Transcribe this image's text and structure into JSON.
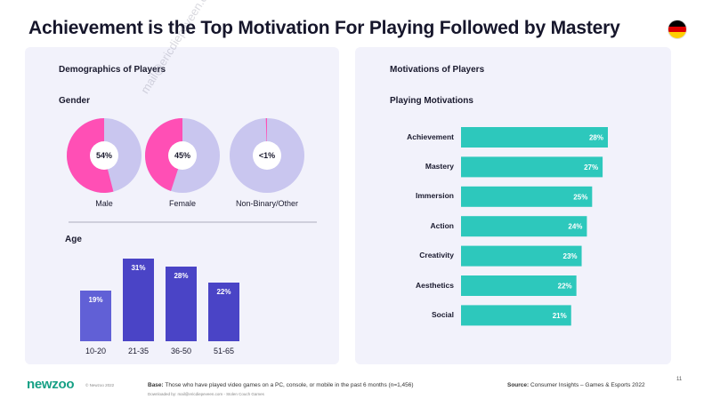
{
  "title": "Achievement is the Top Motivation For Playing Followed by Mastery",
  "flag": {
    "name": "germany-flag-icon",
    "colors": [
      "#000000",
      "#dd0000",
      "#ffce00"
    ]
  },
  "left_panel": {
    "heading": "Demographics of Players",
    "gender_heading": "Gender",
    "age_heading": "Age"
  },
  "right_panel": {
    "heading": "Motivations of Players",
    "subheading": "Playing Motivations"
  },
  "colors": {
    "donut_track": "#c9c6ef",
    "donut_fill": "#ff4fb5",
    "age_bar": "#4a44c6",
    "age_bar_first": "#6160d6",
    "motivation_bar": "#2dc8bc",
    "panel_bg": "#f2f2fb"
  },
  "chart_data": [
    {
      "type": "pie",
      "title": "Gender",
      "slices": [
        {
          "label": "Male",
          "value": 54,
          "display": "54%"
        },
        {
          "label": "Female",
          "value": 45,
          "display": "45%"
        },
        {
          "label": "Non-Binary/Other",
          "value": 0.5,
          "display": "<1%"
        }
      ]
    },
    {
      "type": "bar",
      "title": "Age",
      "categories": [
        "10-20",
        "21-35",
        "36-50",
        "51-65"
      ],
      "values": [
        19,
        31,
        28,
        22
      ],
      "labels": [
        "19%",
        "31%",
        "28%",
        "22%"
      ],
      "ylim": [
        0,
        31
      ]
    },
    {
      "type": "bar",
      "orientation": "horizontal",
      "title": "Playing Motivations",
      "categories": [
        "Achievement",
        "Mastery",
        "Immersion",
        "Action",
        "Creativity",
        "Aesthetics",
        "Social"
      ],
      "values": [
        28,
        27,
        25,
        24,
        23,
        22,
        21
      ],
      "labels": [
        "28%",
        "27%",
        "25%",
        "24%",
        "23%",
        "22%",
        "21%"
      ],
      "xlim": [
        0,
        28
      ]
    }
  ],
  "footer": {
    "logo": "newzoo",
    "copyright": "© Newzoo 2022",
    "base_label": "Base:",
    "base_text": "Those who have played video games on a PC, console, or mobile in the past 6 months (n=1,456)",
    "downloaded": "Downloaded by: mail@ericdiepeveen.com - Stolen Couch Games",
    "source_label": "Source:",
    "source_text": "Consumer Insights – Games & Esports 2022",
    "page_number": "11"
  },
  "watermark": "mail@ericdiepeveen.com"
}
